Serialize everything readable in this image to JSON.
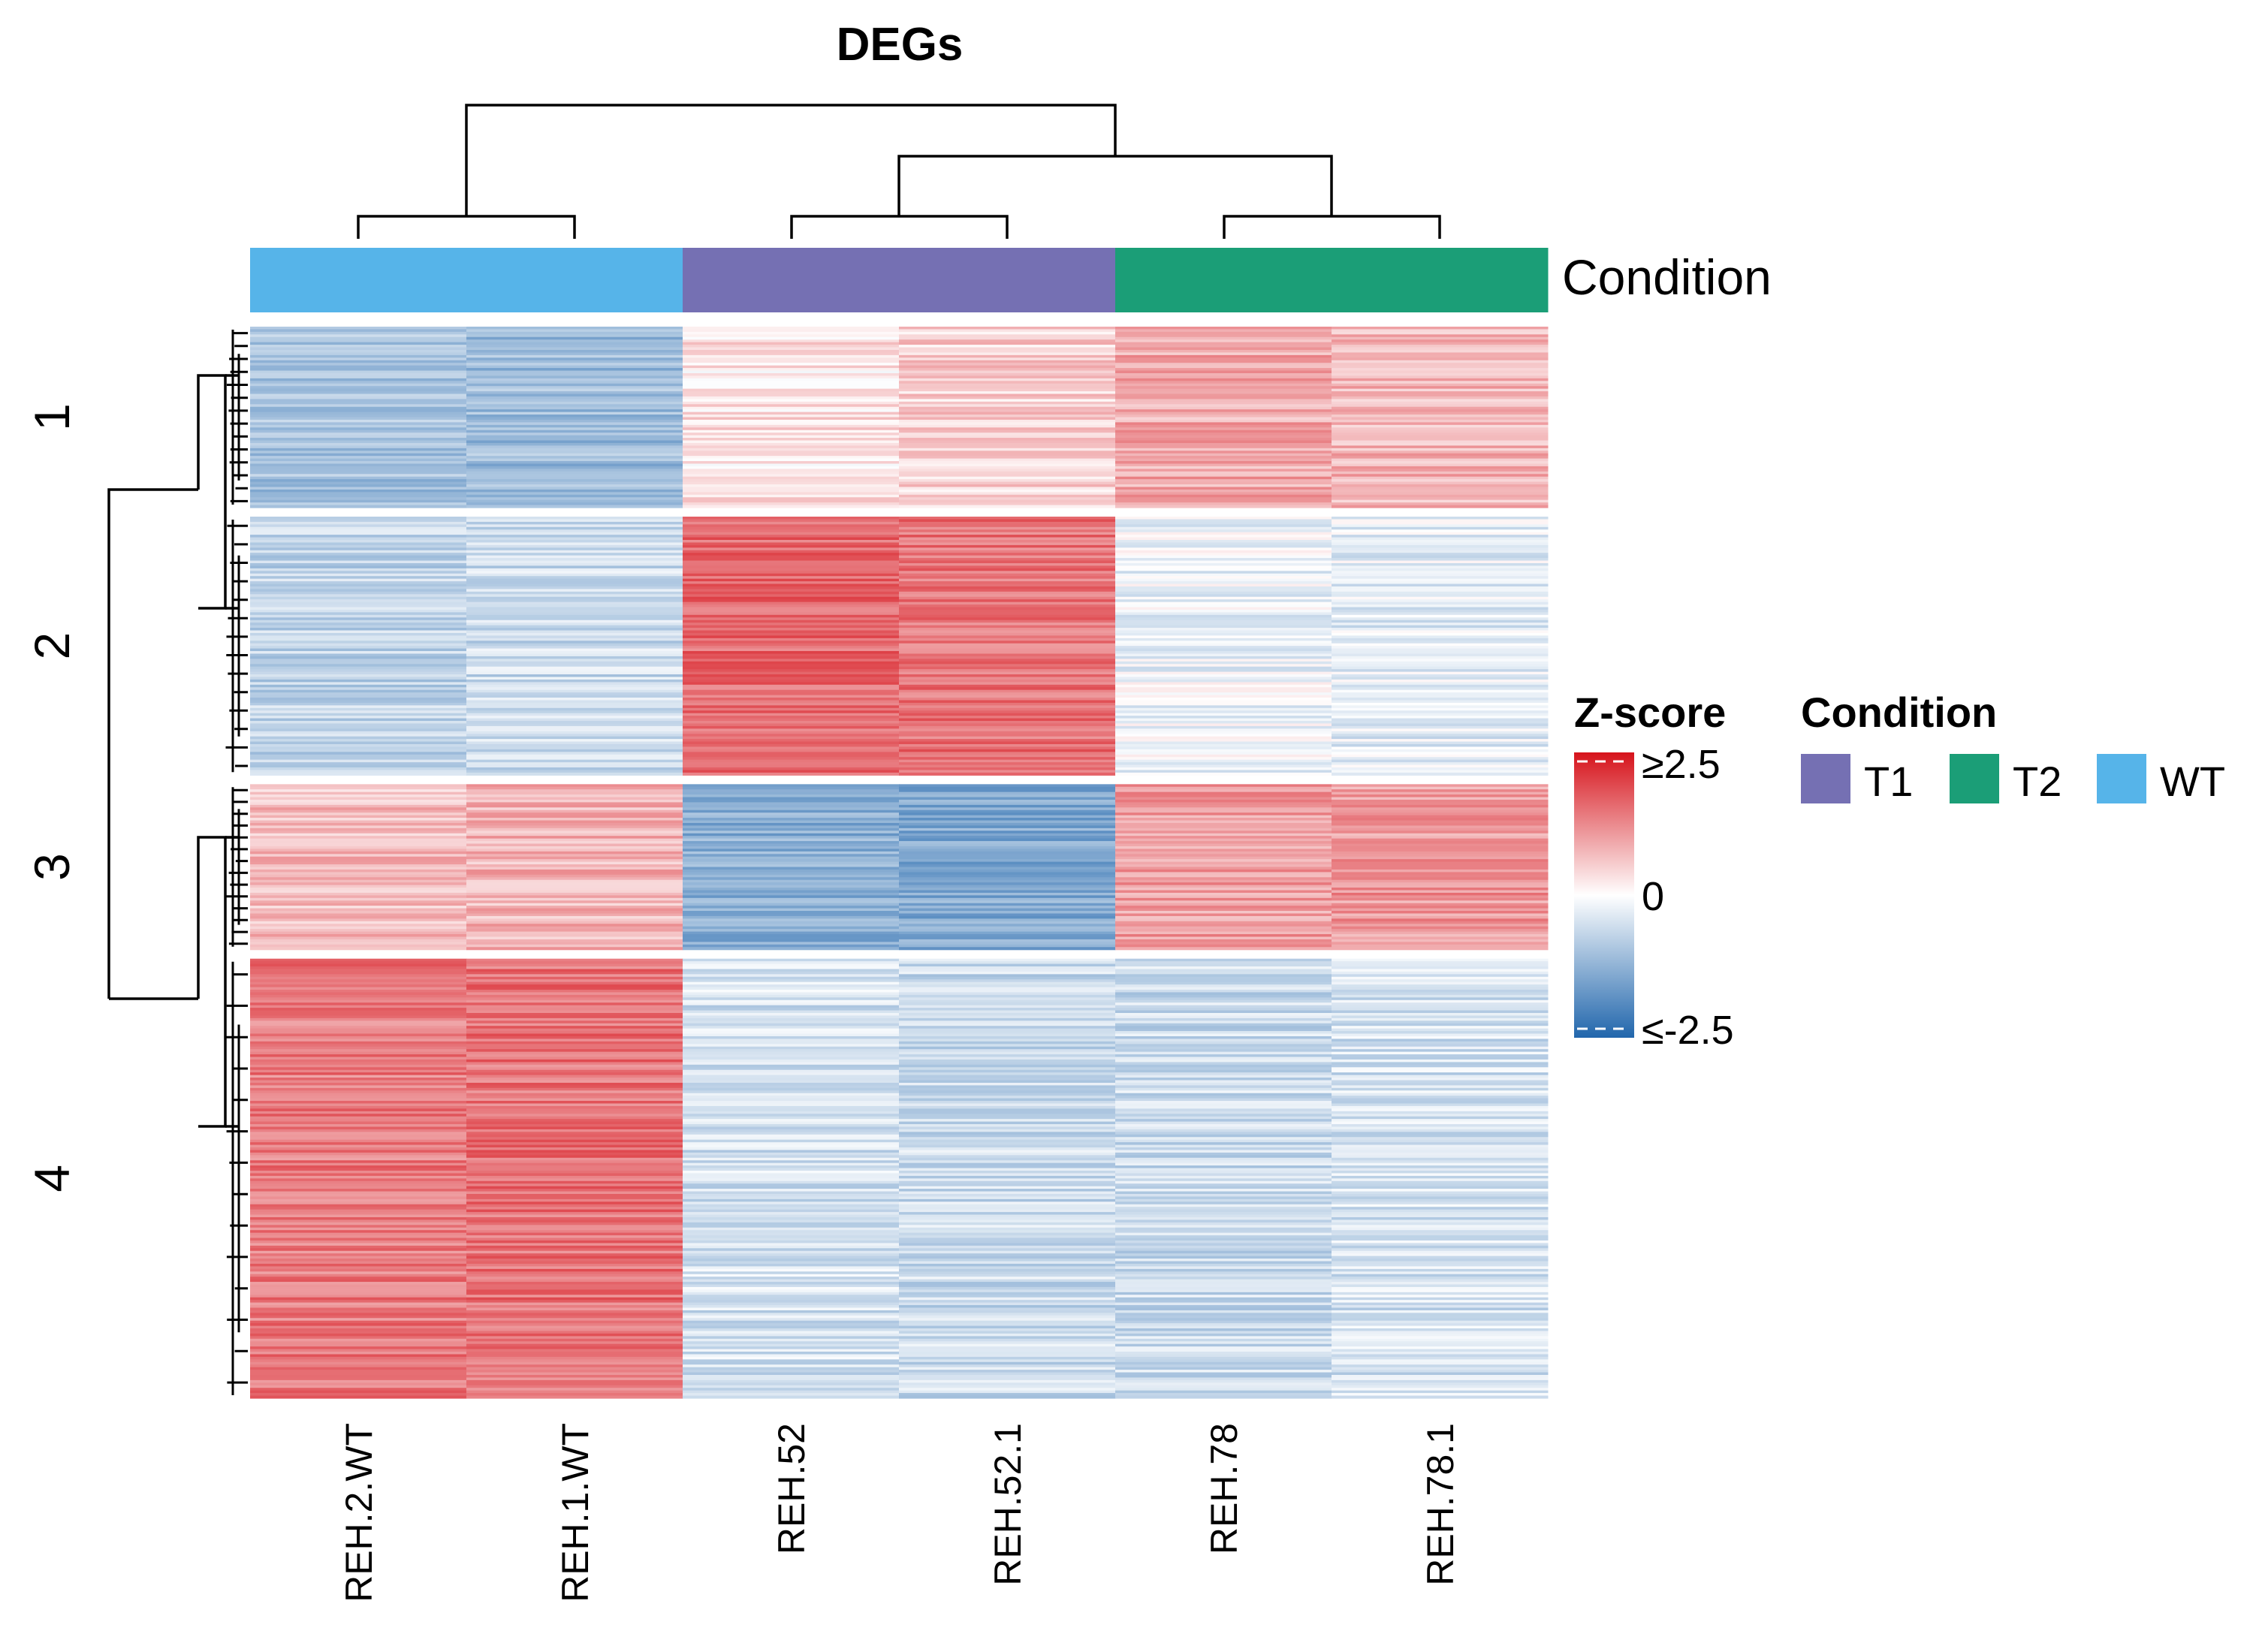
{
  "chart_data": {
    "type": "heatmap",
    "title": "DEGs",
    "columns": [
      "REH.2.WT",
      "REH.1.WT",
      "REH.52",
      "REH.52.1",
      "REH.78",
      "REH.78.1"
    ],
    "column_conditions": [
      "WT",
      "WT",
      "T1",
      "T1",
      "T2",
      "T2"
    ],
    "row_clusters": [
      {
        "label": "1",
        "mean_z": [
          -1.0,
          -1.1,
          0.3,
          0.5,
          0.9,
          0.8
        ],
        "bands": 70
      },
      {
        "label": "2",
        "mean_z": [
          -0.7,
          -0.6,
          1.6,
          1.5,
          -0.2,
          -0.3
        ],
        "bands": 100
      },
      {
        "label": "3",
        "mean_z": [
          0.7,
          0.8,
          -1.3,
          -1.4,
          1.0,
          1.1
        ],
        "bands": 64
      },
      {
        "label": "4",
        "mean_z": [
          1.4,
          1.5,
          -0.5,
          -0.6,
          -0.6,
          -0.5
        ],
        "bands": 170
      }
    ],
    "annotation": {
      "name": "Condition",
      "legend_title": "Condition",
      "levels": [
        {
          "name": "T1",
          "color": "#7570B3"
        },
        {
          "name": "T2",
          "color": "#1B9E77"
        },
        {
          "name": "WT",
          "color": "#56B4E9"
        }
      ]
    },
    "color_scale": {
      "title": "Z-score",
      "min": -2.5,
      "max": 2.5,
      "tick_labels": [
        "≥2.5",
        "0",
        "≤-2.5"
      ],
      "low_color": "#2166AC",
      "mid_color": "#FFFFFF",
      "high_color": "#D6131B"
    }
  }
}
